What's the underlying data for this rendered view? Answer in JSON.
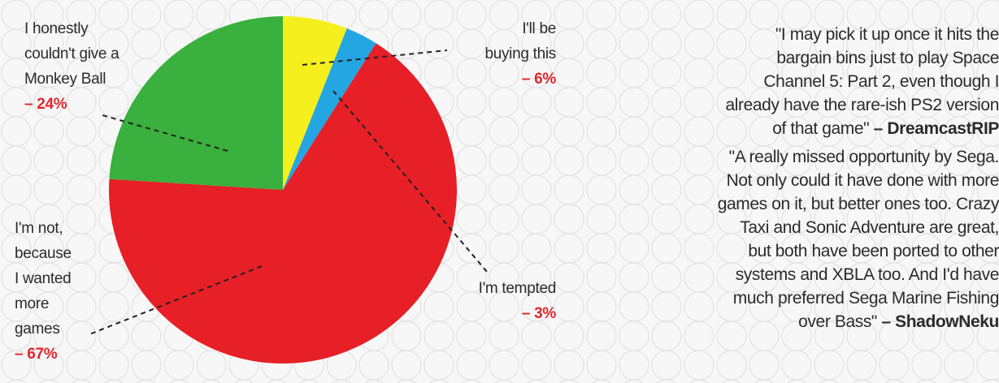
{
  "chart_data": {
    "type": "pie",
    "title": "",
    "slices": [
      {
        "label": "I'll be buying this",
        "value": 6,
        "color": "#f6ef1e"
      },
      {
        "label": "I'm tempted",
        "value": 3,
        "color": "#24a6e2"
      },
      {
        "label": "I'm not, because I wanted more games",
        "value": 67,
        "color": "#e71f26"
      },
      {
        "label": "I honestly couldn't give a Monkey Ball",
        "value": 24,
        "color": "#3ab03e"
      }
    ],
    "start": "12 o'clock",
    "direction": "clockwise"
  },
  "labels": {
    "indifferent": {
      "lines": [
        "I honestly",
        "couldn't give a",
        "Monkey Ball"
      ],
      "pct": "– 24%"
    },
    "not_buying": {
      "lines": [
        "I'm not,",
        "because",
        "I wanted",
        "more",
        "games"
      ],
      "pct": "– 67%"
    },
    "buying": {
      "lines": [
        "I'll be",
        "buying this"
      ],
      "pct": "– 6%"
    },
    "tempted": {
      "lines": [
        "I'm tempted"
      ],
      "pct": "– 3%"
    }
  },
  "quotes": [
    {
      "lines": [
        "\"I may pick it up once it hits the",
        "bargain bins just to play Space",
        "Channel 5: Part 2, even though I",
        "already have the rare-ish PS2 version",
        "of that game\""
      ],
      "author": " – DreamcastRIP"
    },
    {
      "lines": [
        "\"A really missed opportunity by Sega.",
        "Not only could it have done with more",
        "games on it, but better ones too. Crazy",
        "Taxi and Sonic Adventure are great,",
        "but both have been ported to other",
        "systems and XBLA too. And I'd have",
        "much preferred Sega Marine Fishing",
        "over Bass\""
      ],
      "author": " – ShadowNeku"
    }
  ]
}
